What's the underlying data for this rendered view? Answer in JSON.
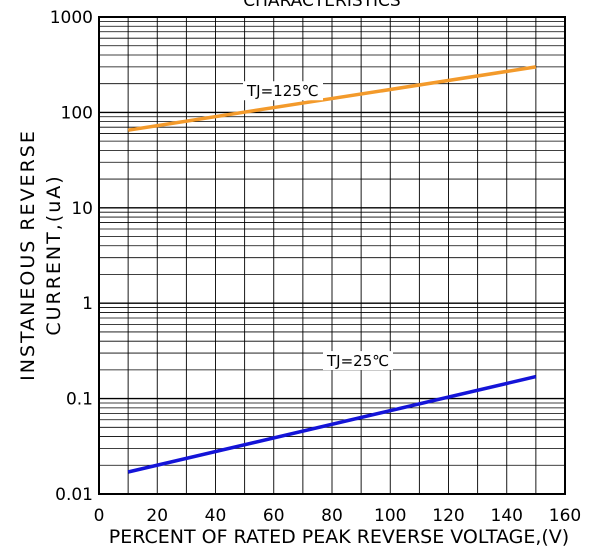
{
  "chart_data": {
    "type": "line",
    "title": "CHARACTERISTICS",
    "xlabel": "PERCENT OF RATED PEAK REVERSE VOLTAGE,(V)",
    "ylabel_line1": "INSTANEOUS REVERSE",
    "ylabel_line2": "CURRENT,(uA)",
    "y_scale": "log",
    "xlim": [
      0,
      160
    ],
    "ylim": [
      0.01,
      1000
    ],
    "x_ticks": [
      "0",
      "20",
      "40",
      "60",
      "80",
      "100",
      "120",
      "140",
      "160"
    ],
    "y_ticks": [
      "0.01",
      "0.1",
      "1",
      "10",
      "100",
      "1000"
    ],
    "grid": true,
    "series": [
      {
        "name": "TJ=125℃",
        "color": "#f39a2b",
        "x": [
          10,
          150
        ],
        "y": [
          65,
          300
        ]
      },
      {
        "name": "TJ=25℃",
        "color": "#1414d8",
        "x": [
          10,
          150
        ],
        "y": [
          0.017,
          0.17
        ]
      }
    ]
  }
}
